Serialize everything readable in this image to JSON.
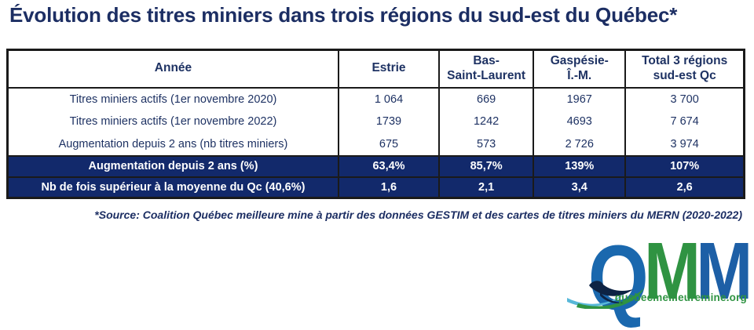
{
  "title": "Évolution des titres miniers dans trois régions du sud-est du Québec*",
  "table": {
    "headers": [
      "Année",
      "Estrie",
      "Bas-\nSaint-Laurent",
      "Gaspésie-\nÎ.-M.",
      "Total 3 régions\nsud-est Qc"
    ],
    "rows": [
      {
        "label": "Titres miniers actifs (1er novembre 2020)",
        "values": [
          "1 064",
          "669",
          "1967",
          "3 700"
        ],
        "highlight": false
      },
      {
        "label": "Titres miniers actifs (1er novembre 2022)",
        "values": [
          "1739",
          "1242",
          "4693",
          "7 674"
        ],
        "highlight": false
      },
      {
        "label": "Augmentation depuis 2 ans (nb titres miniers)",
        "values": [
          "675",
          "573",
          "2 726",
          "3 974"
        ],
        "highlight": false
      },
      {
        "label": "Augmentation depuis 2 ans (%)",
        "values": [
          "63,4%",
          "85,7%",
          "139%",
          "107%"
        ],
        "highlight": true
      },
      {
        "label": "Nb de fois supérieur à la moyenne du Qc (40,6%)",
        "values": [
          "1,6",
          "2,1",
          "3,4",
          "2,6"
        ],
        "highlight": true
      }
    ]
  },
  "source": "*Source: Coalition Québec meilleure mine à partir des données GESTIM et des cartes de titres miniers du MERN (2020-2022)",
  "logo": {
    "letters": [
      {
        "text": "Q",
        "color": "#1a68ae"
      },
      {
        "text": "M",
        "color": "#2f9342"
      },
      {
        "text": "M",
        "color": "#1d5fa6"
      }
    ],
    "url": "quebecmeilleuremine.org"
  },
  "colors": {
    "navy_text": "#1c2e63",
    "highlight_row_bg": "#12296b",
    "highlight_row_text": "#ffffff",
    "table_border": "#1a1a1a",
    "logo_blue": "#1a68ae",
    "logo_green": "#2f9342",
    "swoosh_teal": "#58b8d9",
    "swoosh_navy": "#0d2344"
  },
  "chart_data": {
    "type": "table",
    "title": "Évolution des titres miniers dans trois régions du sud-est du Québec*",
    "columns": [
      "Année",
      "Estrie",
      "Bas-Saint-Laurent",
      "Gaspésie-Î.-M.",
      "Total 3 régions sud-est Qc"
    ],
    "rows": [
      [
        "Titres miniers actifs (1er novembre 2020)",
        "1 064",
        "669",
        "1967",
        "3 700"
      ],
      [
        "Titres miniers actifs (1er novembre 2022)",
        "1739",
        "1242",
        "4693",
        "7 674"
      ],
      [
        "Augmentation depuis 2 ans (nb titres miniers)",
        "675",
        "573",
        "2 726",
        "3 974"
      ],
      [
        "Augmentation depuis 2 ans (%)",
        "63,4%",
        "85,7%",
        "139%",
        "107%"
      ],
      [
        "Nb de fois supérieur à la moyenne du Qc (40,6%)",
        "1,6",
        "2,1",
        "3,4",
        "2,6"
      ]
    ],
    "highlighted_rows": [
      3,
      4
    ],
    "source_note": "*Source: Coalition Québec meilleure mine à partir des données GESTIM et des cartes de titres miniers du MERN (2020-2022)"
  }
}
